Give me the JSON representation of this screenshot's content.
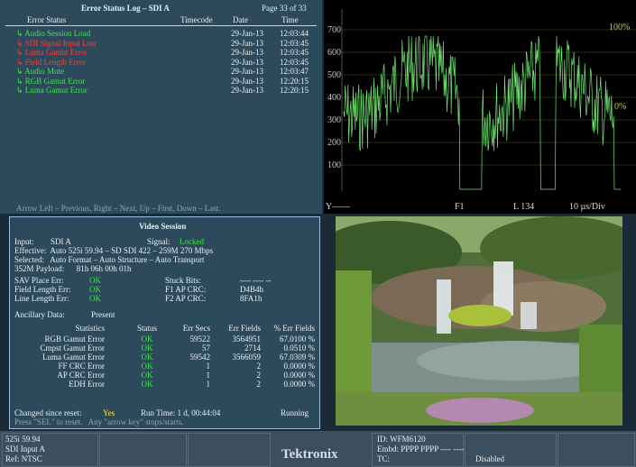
{
  "error_log": {
    "title": "Error Status Log – SDI A",
    "page": "Page 33 of 33",
    "columns": [
      "Error Status",
      "Timecode",
      "Date",
      "Time"
    ],
    "rows": [
      {
        "status": "Audio Session Load",
        "level": "info",
        "date": "29-Jan-13",
        "time": "12:03:44"
      },
      {
        "status": "SDI Signal Input Lost",
        "level": "error",
        "date": "29-Jan-13",
        "time": "12:03:45"
      },
      {
        "status": "Luma Gamut Error",
        "level": "error",
        "date": "29-Jan-13",
        "time": "12:03:45"
      },
      {
        "status": "Field Length Error",
        "level": "error",
        "date": "29-Jan-13",
        "time": "12:03:45"
      },
      {
        "status": "Audio Mute",
        "level": "info",
        "date": "29-Jan-13",
        "time": "12:03:47"
      },
      {
        "status": "RGB Gamut Error",
        "level": "info",
        "date": "29-Jan-13",
        "time": "12:20:15"
      },
      {
        "status": "Luma Gamut Error",
        "level": "info",
        "date": "29-Jan-13",
        "time": "12:20:15"
      }
    ],
    "footer": "Arrow Left – Previous, Right – Next, Up – First, Down – Last."
  },
  "waveform": {
    "scale_labels": [
      "700",
      "600",
      "500",
      "400",
      "300",
      "200",
      "100"
    ],
    "percent_top": "100%",
    "percent_zero": "0%",
    "status": [
      "Y——",
      "F1",
      "L 134",
      "10 µs/Div"
    ]
  },
  "video_session": {
    "title": "Video Session",
    "input_label": "Input:",
    "input": "SDI A",
    "signal_label": "Signal:",
    "signal": "Locked",
    "lines": [
      "Effective:  Auto 525i 59.94 – SD SDI 422 – 259M 270 Mbps",
      "Selected:   Auto Format – Auto Structure – Auto Transport",
      "352M Payload:      81h 06h 00h 01h"
    ],
    "checks": [
      {
        "label": "SAV Place Err:",
        "value": "OK",
        "label2": "Stuck Bits:",
        "value2": "---- ---- --"
      },
      {
        "label": "Field Length Err:",
        "value": "OK",
        "label2": "F1 AP CRC:",
        "value2": "D4B4h"
      },
      {
        "label": "Line Length Err:",
        "value": "OK",
        "label2": "F2 AP CRC:",
        "value2": "8FA1h"
      }
    ],
    "ancillary_label": "Ancillary Data:",
    "ancillary": "Present",
    "stats_columns": [
      "Statistics",
      "Status",
      "Err Secs",
      "Err Fields",
      "% Err Fields"
    ],
    "stats": [
      [
        "RGB Gamut Error",
        "OK",
        "59522",
        "3564951",
        "67.0100 %"
      ],
      [
        "Cmpst Gamut Error",
        "OK",
        "57",
        "2714",
        "0.0510 %"
      ],
      [
        "Luma Gamut Error",
        "OK",
        "59542",
        "3566059",
        "67.0309 %"
      ],
      [
        "FF CRC Error",
        "OK",
        "1",
        "2",
        "0.0000 %"
      ],
      [
        "AP CRC Error",
        "OK",
        "1",
        "2",
        "0.0000 %"
      ],
      [
        "EDH Error",
        "OK",
        "1",
        "2",
        "0.0000 %"
      ]
    ],
    "changed_label": "Changed since reset:",
    "changed": "Yes",
    "runtime": "Run Time: 1 d, 00:44:04",
    "state": "Running",
    "hint": "Press \"SEL\" to reset.   Any \"arrow key\" stops/starts."
  },
  "status_bar": {
    "format": "525i 59.94",
    "input": "SDI Input A",
    "ref": "Ref: NTSC",
    "brand": "Tektronix",
    "id": "ID: WFM6120",
    "embd": "Embd: PPPP PPPP ---- ----",
    "tc_label": "TC:",
    "tc": "Disabled"
  }
}
